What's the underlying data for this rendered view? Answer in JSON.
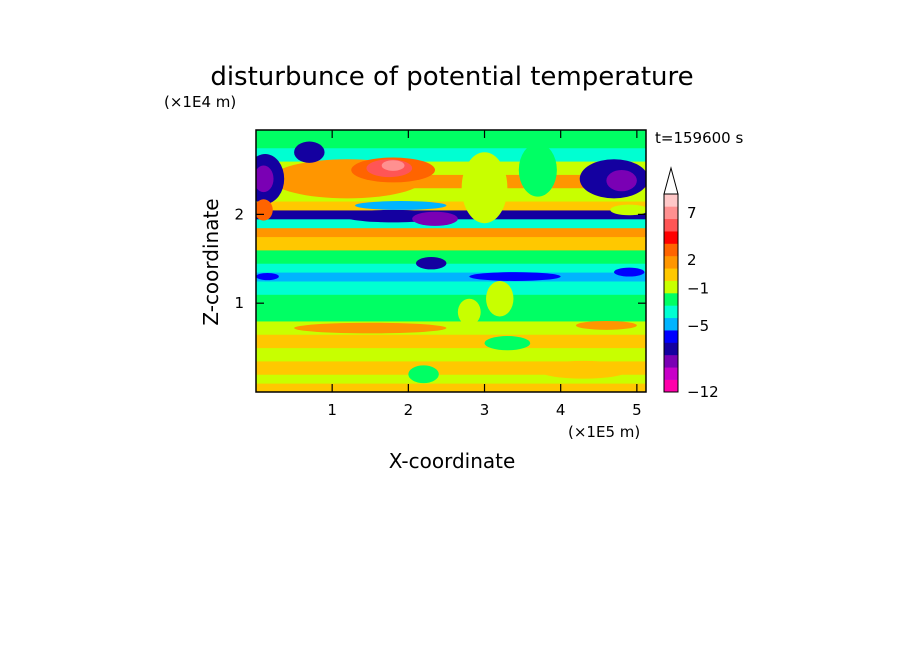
{
  "chart_data": {
    "type": "heatmap",
    "title": "disturbunce of potential temperature",
    "xlabel": "X-coordinate",
    "ylabel": "Z-coordinate",
    "x_unit": "(×1E5 m)",
    "y_unit": "(×1E4 m)",
    "time_label": "t=159600 s",
    "xlim": [
      0,
      5.12
    ],
    "ylim": [
      0,
      2.95
    ],
    "x_ticks": [
      "1",
      "2",
      "3",
      "4",
      "5"
    ],
    "y_ticks": [
      "1",
      "2"
    ],
    "x_tick_values": [
      1,
      2,
      3,
      4,
      5
    ],
    "y_tick_values": [
      1,
      2
    ],
    "colorbar": {
      "labels": [
        "7",
        "2",
        "−1",
        "−5",
        "−12"
      ],
      "label_values": [
        7,
        2,
        -1,
        -5,
        -12
      ],
      "colors": [
        "#ff00aa",
        "#c800c8",
        "#7a00b4",
        "#1400a0",
        "#0000ff",
        "#00b4ff",
        "#00ffd2",
        "#00ff64",
        "#c8ff00",
        "#ffc800",
        "#ff9600",
        "#ff6400",
        "#ff0000",
        "#ff5555",
        "#ff9090",
        "#ffc8c8"
      ],
      "extend_max": true
    },
    "bands": [
      {
        "z0": 0.0,
        "z1": 0.1,
        "level": 9
      },
      {
        "z0": 0.1,
        "z1": 0.2,
        "level": 8
      },
      {
        "z0": 0.2,
        "z1": 0.35,
        "level": 9
      },
      {
        "z0": 0.35,
        "z1": 0.5,
        "level": 8
      },
      {
        "z0": 0.5,
        "z1": 0.65,
        "level": 9
      },
      {
        "z0": 0.65,
        "z1": 0.8,
        "level": 8
      },
      {
        "z0": 0.8,
        "z1": 0.95,
        "level": 7
      },
      {
        "z0": 0.95,
        "z1": 1.1,
        "level": 7
      },
      {
        "z0": 1.1,
        "z1": 1.25,
        "level": 6
      },
      {
        "z0": 1.25,
        "z1": 1.35,
        "level": 5
      },
      {
        "z0": 1.35,
        "z1": 1.45,
        "level": 6
      },
      {
        "z0": 1.45,
        "z1": 1.6,
        "level": 7
      },
      {
        "z0": 1.6,
        "z1": 1.75,
        "level": 9
      },
      {
        "z0": 1.75,
        "z1": 1.85,
        "level": 10
      },
      {
        "z0": 1.85,
        "z1": 1.95,
        "level": 6
      },
      {
        "z0": 1.95,
        "z1": 2.05,
        "level": 3
      },
      {
        "z0": 2.05,
        "z1": 2.15,
        "level": 9
      },
      {
        "z0": 2.15,
        "z1": 2.3,
        "level": 8
      },
      {
        "z0": 2.3,
        "z1": 2.45,
        "level": 10
      },
      {
        "z0": 2.45,
        "z1": 2.6,
        "level": 8
      },
      {
        "z0": 2.6,
        "z1": 2.75,
        "level": 6
      },
      {
        "z0": 2.75,
        "z1": 2.95,
        "level": 7
      }
    ],
    "features": [
      {
        "x": 1.2,
        "z": 2.4,
        "rx": 1.0,
        "rz": 0.22,
        "level": 10
      },
      {
        "x": 1.8,
        "z": 2.5,
        "rx": 0.55,
        "rz": 0.14,
        "level": 11
      },
      {
        "x": 1.75,
        "z": 2.52,
        "rx": 0.3,
        "rz": 0.1,
        "level": 13
      },
      {
        "x": 1.8,
        "z": 2.55,
        "rx": 0.15,
        "rz": 0.06,
        "level": 14
      },
      {
        "x": 0.12,
        "z": 2.4,
        "rx": 0.25,
        "rz": 0.28,
        "level": 3
      },
      {
        "x": 0.1,
        "z": 2.4,
        "rx": 0.13,
        "rz": 0.15,
        "level": 2
      },
      {
        "x": 0.7,
        "z": 2.7,
        "rx": 0.2,
        "rz": 0.12,
        "level": 3
      },
      {
        "x": 4.7,
        "z": 2.4,
        "rx": 0.45,
        "rz": 0.22,
        "level": 3
      },
      {
        "x": 4.8,
        "z": 2.38,
        "rx": 0.2,
        "rz": 0.12,
        "level": 2
      },
      {
        "x": 1.8,
        "z": 1.98,
        "rx": 0.65,
        "rz": 0.07,
        "level": 3
      },
      {
        "x": 2.35,
        "z": 1.95,
        "rx": 0.3,
        "rz": 0.08,
        "level": 2
      },
      {
        "x": 2.3,
        "z": 1.45,
        "rx": 0.2,
        "rz": 0.07,
        "level": 3
      },
      {
        "x": 1.9,
        "z": 2.1,
        "rx": 0.6,
        "rz": 0.05,
        "level": 5
      },
      {
        "x": 0.1,
        "z": 2.05,
        "rx": 0.12,
        "rz": 0.12,
        "level": 11
      },
      {
        "x": 4.9,
        "z": 2.05,
        "rx": 0.25,
        "rz": 0.06,
        "level": 8
      },
      {
        "x": 3.7,
        "z": 2.5,
        "rx": 0.25,
        "rz": 0.3,
        "level": 7
      },
      {
        "x": 3.0,
        "z": 2.3,
        "rx": 0.3,
        "rz": 0.4,
        "level": 8
      },
      {
        "x": 3.2,
        "z": 1.05,
        "rx": 0.18,
        "rz": 0.2,
        "level": 8
      },
      {
        "x": 2.8,
        "z": 0.9,
        "rx": 0.15,
        "rz": 0.15,
        "level": 8
      },
      {
        "x": 3.3,
        "z": 0.55,
        "rx": 0.3,
        "rz": 0.08,
        "level": 7
      },
      {
        "x": 2.2,
        "z": 0.2,
        "rx": 0.2,
        "rz": 0.1,
        "level": 7
      },
      {
        "x": 4.3,
        "z": 0.25,
        "rx": 0.6,
        "rz": 0.1,
        "level": 9
      },
      {
        "x": 4.6,
        "z": 0.75,
        "rx": 0.4,
        "rz": 0.05,
        "level": 10
      },
      {
        "x": 1.5,
        "z": 0.72,
        "rx": 1.0,
        "rz": 0.06,
        "level": 10
      },
      {
        "x": 3.4,
        "z": 1.3,
        "rx": 0.6,
        "rz": 0.05,
        "level": 4
      },
      {
        "x": 4.9,
        "z": 1.35,
        "rx": 0.2,
        "rz": 0.05,
        "level": 4
      },
      {
        "x": 0.15,
        "z": 1.3,
        "rx": 0.15,
        "rz": 0.04,
        "level": 4
      }
    ]
  }
}
